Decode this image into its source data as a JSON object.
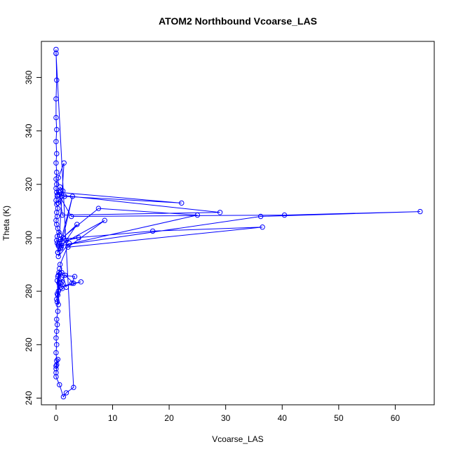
{
  "chart_data": {
    "type": "scatter",
    "title": "ATOM2 Northbound Vcoarse_LAS",
    "xlabel": "Vcoarse_LAS",
    "ylabel": "Theta (K)",
    "xlim": [
      -2.6,
      66.9
    ],
    "ylim": [
      237.5,
      373.5
    ],
    "x_ticks": [
      0,
      10,
      20,
      30,
      40,
      50,
      60
    ],
    "y_ticks": [
      240,
      260,
      280,
      300,
      320,
      340,
      360
    ],
    "grid": false,
    "legend": "none",
    "marker": "open-circle",
    "connected": true,
    "series_color": "#0000ff",
    "series": [
      {
        "x": [
          0.0,
          0.0,
          0.1,
          0.0,
          0.0,
          0.1,
          0.0,
          0.1,
          0.0,
          0.1,
          0.0,
          0.1,
          0.0,
          0.1,
          0.2,
          0.0,
          0.1,
          0.3,
          0.1,
          0.2,
          0.0,
          0.1,
          0.3,
          0.5,
          0.2,
          0.1,
          0.4,
          0.8,
          0.3,
          0.2,
          0.6,
          1.4,
          0.4,
          0.2,
          0.7,
          1.2,
          0.3,
          1.5,
          22.2,
          0.6,
          1.1,
          29.0,
          0.5,
          2.7,
          40.4,
          64.4,
          36.2,
          0.4,
          8.6,
          2.1,
          36.5,
          17.1,
          0.8,
          7.5,
          25.0,
          0.9,
          2.9,
          0.3,
          3.7,
          1.2,
          0.6,
          4.0,
          1.8,
          0.9,
          0.4,
          2.3,
          0.7,
          1.0,
          0.3,
          0.5,
          1.1,
          0.2,
          0.4,
          0.6,
          0.2,
          0.3,
          0.7,
          0.1,
          0.4,
          0.5,
          1.0,
          1.8,
          1.2,
          3.3,
          2.8,
          0.9,
          4.4,
          3.1,
          1.6,
          0.8,
          0.4,
          0.2,
          0.3,
          0.1,
          0.2,
          0.1,
          0.0,
          0.1,
          0.0,
          0.1,
          0.0,
          0.0,
          0.1,
          0.3,
          0.0,
          0.0,
          0.6,
          1.3,
          1.8,
          3.1,
          0.0
        ],
        "y": [
          369.0,
          370.5,
          359.0,
          352.0,
          345.0,
          340.5,
          336.0,
          331.5,
          328.0,
          324.5,
          322.0,
          320.0,
          318.5,
          317.0,
          315.5,
          314.0,
          312.5,
          311.0,
          309.5,
          308.0,
          306.5,
          305.0,
          303.5,
          302.0,
          300.5,
          299.0,
          297.5,
          296.0,
          294.5,
          298.0,
          301.0,
          328.0,
          322.5,
          316.0,
          319.0,
          317.5,
          313.0,
          315.5,
          313.0,
          317.0,
          308.5,
          309.5,
          316.0,
          308.0,
          308.5,
          309.8,
          308.0,
          297.0,
          306.5,
          296.5,
          304.0,
          302.5,
          299.5,
          311.0,
          308.5,
          297.0,
          315.5,
          294.5,
          305.0,
          300.0,
          298.5,
          300.0,
          299.0,
          296.5,
          293.0,
          298.0,
          290.0,
          287.0,
          285.5,
          283.0,
          281.0,
          279.0,
          286.0,
          288.5,
          284.0,
          278.5,
          286.5,
          277.0,
          275.0,
          287.0,
          283.5,
          281.5,
          286.0,
          285.5,
          283.0,
          281.5,
          283.5,
          283.0,
          286.0,
          283.0,
          280.0,
          276.0,
          272.5,
          269.5,
          267.5,
          265.0,
          262.5,
          260.0,
          257.0,
          254.0,
          252.0,
          251.0,
          252.5,
          254.5,
          249.5,
          248.0,
          245.0,
          240.5,
          242.0,
          244.0,
          369.0
        ]
      }
    ]
  }
}
